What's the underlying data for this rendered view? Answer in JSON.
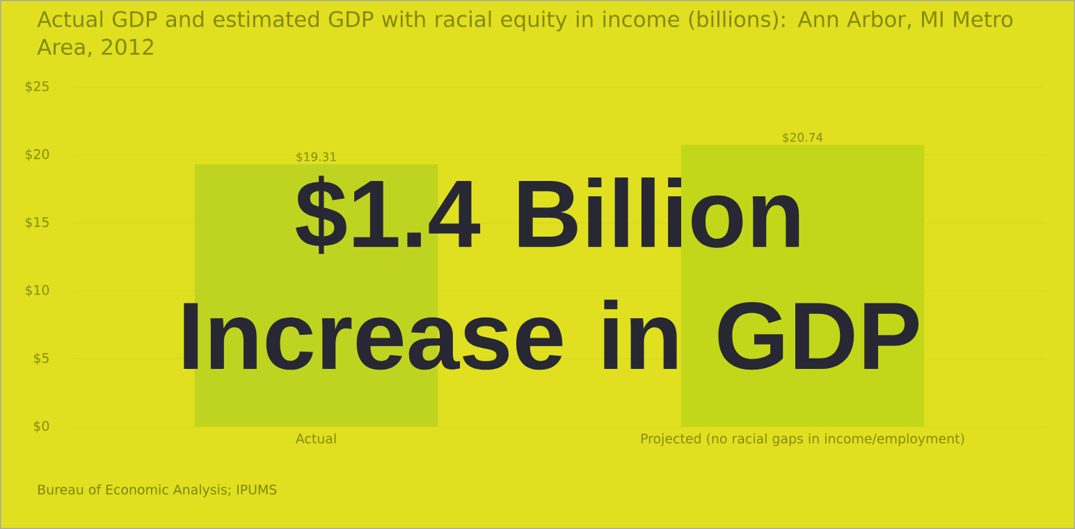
{
  "chart_data": {
    "type": "bar",
    "title": "Actual GDP and estimated GDP with racial equity in income (billions): Ann Arbor, MI Metro Area, 2012",
    "categories": [
      "Actual",
      "Projected (no racial gaps in income/employment)"
    ],
    "values": [
      19.31,
      20.74
    ],
    "colors": [
      "#bfd420",
      "#c2d719"
    ],
    "value_labels": [
      "$19.31",
      "$20.74"
    ],
    "ylim": [
      0,
      25
    ],
    "yticks": [
      {
        "value": 0,
        "label": "$0"
      },
      {
        "value": 5,
        "label": "$5"
      },
      {
        "value": 10,
        "label": "$10"
      },
      {
        "value": 15,
        "label": "$15"
      },
      {
        "value": 20,
        "label": "$20"
      },
      {
        "value": 25,
        "label": "$25"
      }
    ],
    "grid": "y",
    "annotations": [
      "$1.4 Billion Increase in GDP",
      "Bureau of Economic Analysis; IPUMS"
    ]
  }
}
